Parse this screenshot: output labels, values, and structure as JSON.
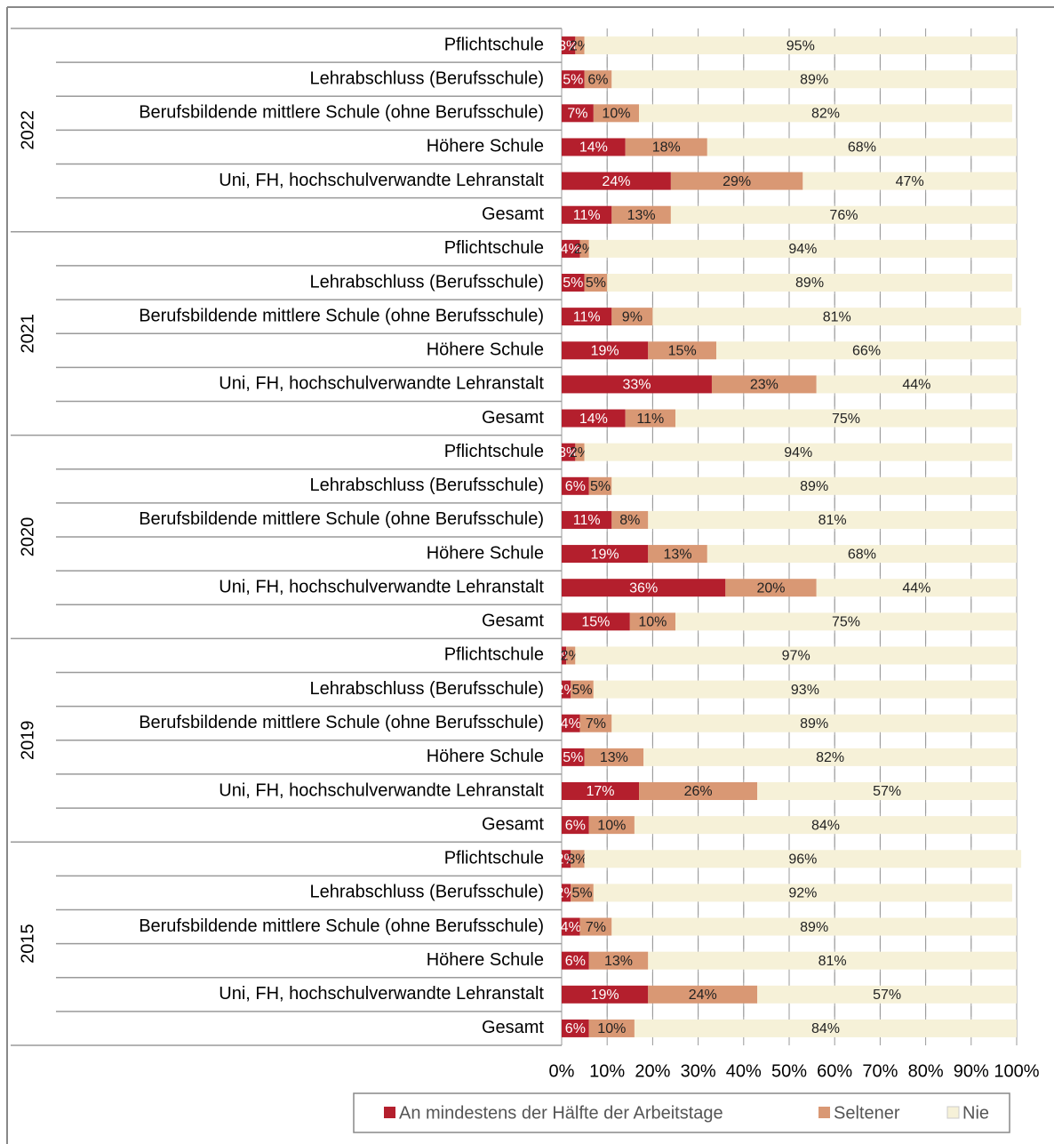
{
  "chart_data": {
    "type": "stacked-bar-horizontal",
    "groups": [
      "2022",
      "2021",
      "2020",
      "2019",
      "2015"
    ],
    "categories": [
      "Pflichtschule",
      "Lehrabschluss (Berufsschule)",
      "Berufsbildende mittlere Schule (ohne Berufsschule)",
      "Höhere Schule",
      "Uni, FH, hochschulverwandte Lehranstalt",
      "Gesamt",
      "Pflichtschule",
      "Lehrabschluss (Berufsschule)",
      "Berufsbildende mittlere Schule (ohne Berufsschule)",
      "Höhere Schule",
      "Uni, FH, hochschulverwandte Lehranstalt",
      "Gesamt",
      "Pflichtschule",
      "Lehrabschluss (Berufsschule)",
      "Berufsbildende mittlere Schule (ohne Berufsschule)",
      "Höhere Schule",
      "Uni, FH, hochschulverwandte Lehranstalt",
      "Gesamt",
      "Pflichtschule",
      "Lehrabschluss (Berufsschule)",
      "Berufsbildende mittlere Schule (ohne Berufsschule)",
      "Höhere Schule",
      "Uni, FH, hochschulverwandte Lehranstalt",
      "Gesamt",
      "Pflichtschule",
      "Lehrabschluss (Berufsschule)",
      "Berufsbildende mittlere Schule (ohne Berufsschule)",
      "Höhere Schule",
      "Uni, FH, hochschulverwandte Lehranstalt",
      "Gesamt"
    ],
    "series": [
      {
        "name": "An mindestens der Hälfte der Arbeitstage",
        "color": "#b41f2d",
        "values": [
          3,
          5,
          7,
          14,
          24,
          11,
          4,
          5,
          11,
          19,
          33,
          14,
          3,
          6,
          11,
          19,
          36,
          15,
          1,
          2,
          4,
          5,
          17,
          6,
          2,
          2,
          4,
          6,
          19,
          6
        ],
        "value_labels": [
          "3%",
          "5%",
          "7%",
          "14%",
          "24%",
          "11%",
          "4%",
          "5%",
          "11%",
          "19%",
          "33%",
          "14%",
          "3%",
          "6%",
          "11%",
          "19%",
          "36%",
          "15%",
          "1%",
          "2%",
          "4%",
          "5%",
          "17%",
          "6%",
          "2%",
          "2%",
          "4%",
          "6%",
          "19%",
          "6%"
        ]
      },
      {
        "name": "Seltener",
        "color": "#d99874",
        "values": [
          2,
          6,
          10,
          18,
          29,
          13,
          2,
          5,
          9,
          15,
          23,
          11,
          2,
          5,
          8,
          13,
          20,
          10,
          2,
          5,
          7,
          13,
          26,
          10,
          3,
          5,
          7,
          13,
          24,
          10
        ],
        "value_labels": [
          "2%",
          "6%",
          "10%",
          "18%",
          "29%",
          "13%",
          "2%",
          "5%",
          "9%",
          "15%",
          "23%",
          "11%",
          "2%",
          "5%",
          "8%",
          "13%",
          "20%",
          "10%",
          "2%",
          "5%",
          "7%",
          "13%",
          "26%",
          "10%",
          "3%",
          "5%",
          "7%",
          "13%",
          "24%",
          "10%"
        ]
      },
      {
        "name": "Nie",
        "color": "#f6f1d8",
        "values": [
          95,
          89,
          82,
          68,
          47,
          76,
          94,
          89,
          81,
          66,
          44,
          75,
          94,
          89,
          81,
          68,
          44,
          75,
          97,
          93,
          89,
          82,
          57,
          84,
          96,
          92,
          89,
          81,
          57,
          84
        ],
        "value_labels": [
          "95%",
          "89%",
          "82%",
          "68%",
          "47%",
          "76%",
          "94%",
          "89%",
          "81%",
          "66%",
          "44%",
          "75%",
          "94%",
          "89%",
          "81%",
          "68%",
          "44%",
          "75%",
          "97%",
          "93%",
          "89%",
          "82%",
          "57%",
          "84%",
          "96%",
          "92%",
          "89%",
          "81%",
          "57%",
          "84%"
        ]
      }
    ],
    "xlim": [
      0,
      100
    ],
    "xticks": [
      {
        "value": 0,
        "label": "0%"
      },
      {
        "value": 10,
        "label": "10%"
      },
      {
        "value": 20,
        "label": "20%"
      },
      {
        "value": 30,
        "label": "30%"
      },
      {
        "value": 40,
        "label": "40%"
      },
      {
        "value": 50,
        "label": "50%"
      },
      {
        "value": 60,
        "label": "60%"
      },
      {
        "value": 70,
        "label": "70%"
      },
      {
        "value": 80,
        "label": "80%"
      },
      {
        "value": 90,
        "label": "90%"
      },
      {
        "value": 100,
        "label": "100%"
      }
    ],
    "grid": true,
    "legend": "bottom"
  }
}
